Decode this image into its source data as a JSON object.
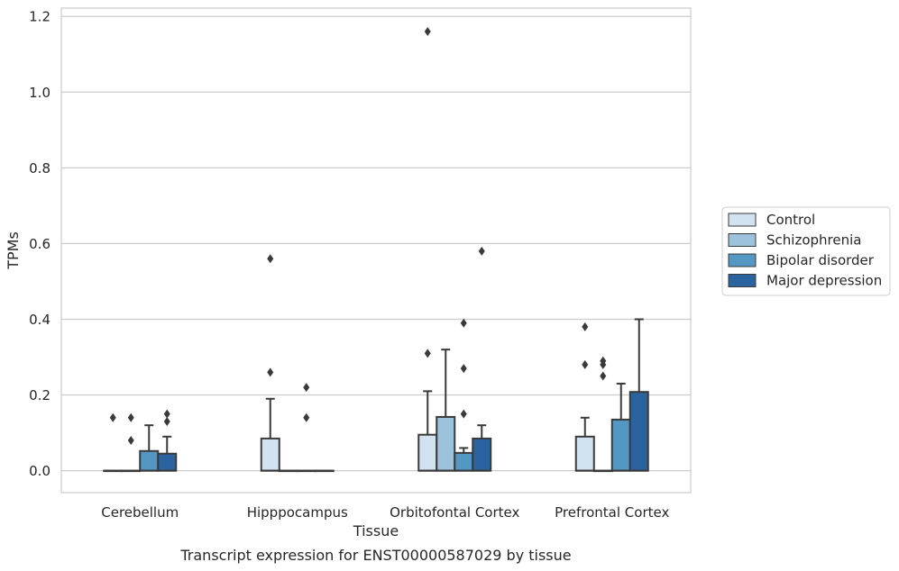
{
  "chart_data": {
    "type": "box",
    "title": "",
    "caption": "Transcript expression for ENST00000587029 by tissue",
    "xlabel": "Tissue",
    "ylabel": "TPMs",
    "ylim": [
      -0.058,
      1.222
    ],
    "yticks": [
      0.0,
      0.2,
      0.4,
      0.6,
      0.8,
      1.0,
      1.2
    ],
    "ytick_labels": [
      "0.0",
      "0.2",
      "0.4",
      "0.6",
      "0.8",
      "1.0",
      "1.2"
    ],
    "grid": "horizontal",
    "legend_position": "right",
    "categories": [
      "Cerebellum",
      "Hipppocampus",
      "Orbitofontal Cortex",
      "Prefrontal Cortex"
    ],
    "series": [
      {
        "name": "Control",
        "color": "#d3e2f1",
        "boxes": [
          {
            "q1": 0,
            "median": 0,
            "q3": 0,
            "whisker_low": 0,
            "whisker_high": 0,
            "outliers": [
              0.14
            ]
          },
          {
            "q1": 0,
            "median": 0,
            "q3": 0.085,
            "whisker_low": 0,
            "whisker_high": 0.19,
            "outliers": [
              0.26,
              0.56
            ]
          },
          {
            "q1": 0,
            "median": 0,
            "q3": 0.095,
            "whisker_low": 0,
            "whisker_high": 0.21,
            "outliers": [
              0.31,
              1.16
            ]
          },
          {
            "q1": 0,
            "median": 0,
            "q3": 0.09,
            "whisker_low": 0,
            "whisker_high": 0.14,
            "outliers": [
              0.28,
              0.38
            ]
          }
        ]
      },
      {
        "name": "Schizophrenia",
        "color": "#9dc3dc",
        "boxes": [
          {
            "q1": 0,
            "median": 0,
            "q3": 0,
            "whisker_low": 0,
            "whisker_high": 0,
            "outliers": [
              0.08,
              0.14
            ]
          },
          {
            "q1": 0,
            "median": 0,
            "q3": 0,
            "whisker_low": 0,
            "whisker_high": 0,
            "outliers": []
          },
          {
            "q1": 0,
            "median": 0,
            "q3": 0.142,
            "whisker_low": 0,
            "whisker_high": 0.32,
            "outliers": []
          },
          {
            "q1": 0,
            "median": 0,
            "q3": 0,
            "whisker_low": 0,
            "whisker_high": 0,
            "outliers": [
              0.25,
              0.28,
              0.29
            ]
          }
        ]
      },
      {
        "name": "Bipolar disorder",
        "color": "#5597c3",
        "boxes": [
          {
            "q1": 0,
            "median": 0,
            "q3": 0.052,
            "whisker_low": 0,
            "whisker_high": 0.12,
            "outliers": []
          },
          {
            "q1": 0,
            "median": 0,
            "q3": 0,
            "whisker_low": 0,
            "whisker_high": 0,
            "outliers": [
              0.14,
              0.22
            ]
          },
          {
            "q1": 0,
            "median": 0,
            "q3": 0.047,
            "whisker_low": 0,
            "whisker_high": 0.06,
            "outliers": [
              0.15,
              0.27,
              0.39
            ]
          },
          {
            "q1": 0,
            "median": 0,
            "q3": 0.135,
            "whisker_low": 0,
            "whisker_high": 0.23,
            "outliers": []
          }
        ]
      },
      {
        "name": "Major depression",
        "color": "#2b63a0",
        "boxes": [
          {
            "q1": 0,
            "median": 0,
            "q3": 0.045,
            "whisker_low": 0,
            "whisker_high": 0.09,
            "outliers": [
              0.13,
              0.15
            ]
          },
          {
            "q1": 0,
            "median": 0,
            "q3": 0,
            "whisker_low": 0,
            "whisker_high": 0,
            "outliers": []
          },
          {
            "q1": 0,
            "median": 0,
            "q3": 0.085,
            "whisker_low": 0,
            "whisker_high": 0.12,
            "outliers": [
              0.58
            ]
          },
          {
            "q1": 0,
            "median": 0,
            "q3": 0.208,
            "whisker_low": 0,
            "whisker_high": 0.4,
            "outliers": []
          }
        ]
      }
    ]
  }
}
